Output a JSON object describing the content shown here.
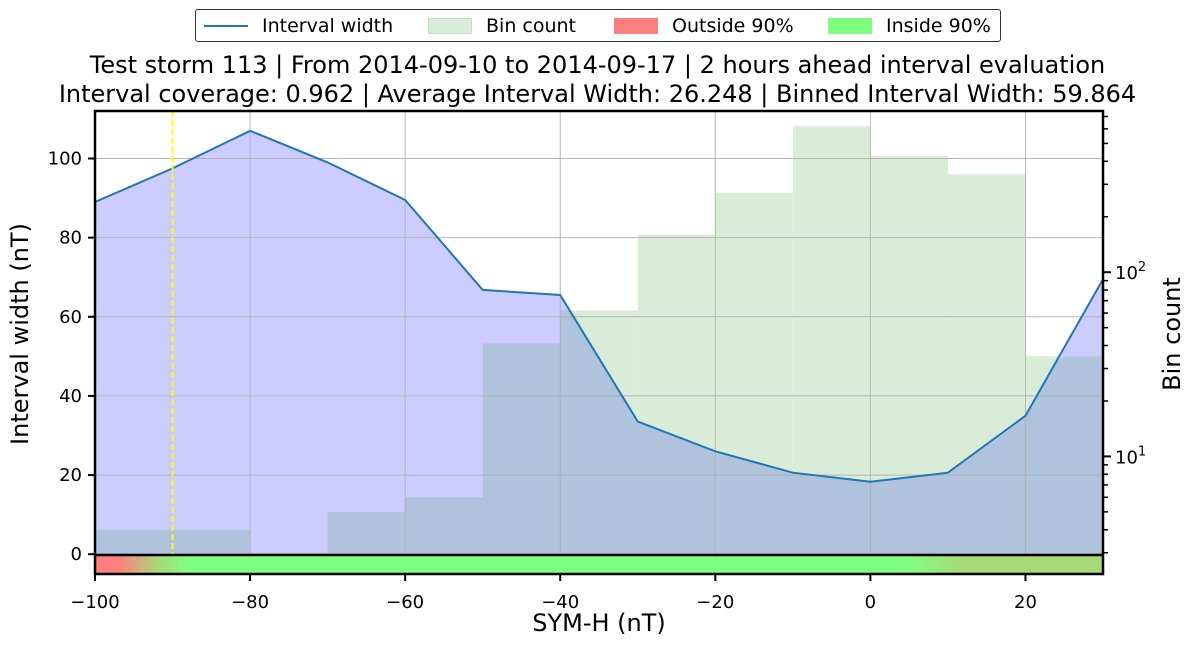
{
  "chart_data": {
    "type": "line",
    "title": "Test storm 113 | From 2014-09-10 to 2014-09-17 | 2 hours ahead interval evaluation",
    "subtitle": "Interval coverage: 0.962 | Average Interval Width: 26.248 | Binned Interval Width: 59.864",
    "xlabel": "SYM-H (nT)",
    "ylabel": "Interval width (nT)",
    "y2label": "Bin count",
    "xlim": [
      -100,
      30
    ],
    "ylim": [
      -5,
      112
    ],
    "y2scale": "log",
    "y2lim_log": [
      2.3,
      750
    ],
    "grid": true,
    "legend_position": "top-center",
    "legend": [
      "Interval width",
      "Bin count",
      "Outside 90%",
      "Inside 90%"
    ],
    "xticks": [
      -100,
      -80,
      -60,
      -40,
      -20,
      0,
      20
    ],
    "xtick_labels": [
      "−100",
      "−80",
      "−60",
      "−40",
      "−20",
      "0",
      "20"
    ],
    "yticks": [
      0,
      20,
      40,
      60,
      80,
      100
    ],
    "y2ticks": [
      {
        "value": 10,
        "label": "10",
        "exp": "1"
      },
      {
        "value": 100,
        "label": "10",
        "exp": "2"
      }
    ],
    "interval_width": {
      "x": [
        -100,
        -90,
        -80,
        -70,
        -60,
        -50,
        -40,
        -30,
        -20,
        -10,
        0,
        10,
        20,
        30
      ],
      "y": [
        89.0,
        97.5,
        107.0,
        99.0,
        89.5,
        66.8,
        65.5,
        33.5,
        26.0,
        20.6,
        18.3,
        20.6,
        35.0,
        69.5
      ]
    },
    "bin_count": {
      "edges": [
        -100,
        -90,
        -80,
        -70,
        -60,
        -50,
        -40,
        -30,
        -20,
        -10,
        0,
        10,
        20,
        30
      ],
      "counts": [
        4,
        4,
        3,
        5,
        6,
        41,
        62,
        160,
        270,
        620,
        430,
        340,
        35,
        35
      ]
    },
    "reference_line_x": -90,
    "coverage_strip": {
      "x": [
        -100,
        -97,
        -92,
        -88,
        -80,
        5,
        12,
        20,
        30
      ],
      "status": [
        "outside",
        "outside",
        "mixed",
        "inside",
        "inside",
        "inside",
        "mixed",
        "mixed",
        "mixed"
      ]
    },
    "colors": {
      "line": "#1f77b4",
      "interval_fill": "#ccccff",
      "bin_fill": "#d8ecd8",
      "overlap_fill": "#afc3dc",
      "outside": "#ff7f7f",
      "inside": "#7fff7f",
      "reference_line": "#ffff00",
      "grid": "#b0b0b0"
    }
  }
}
